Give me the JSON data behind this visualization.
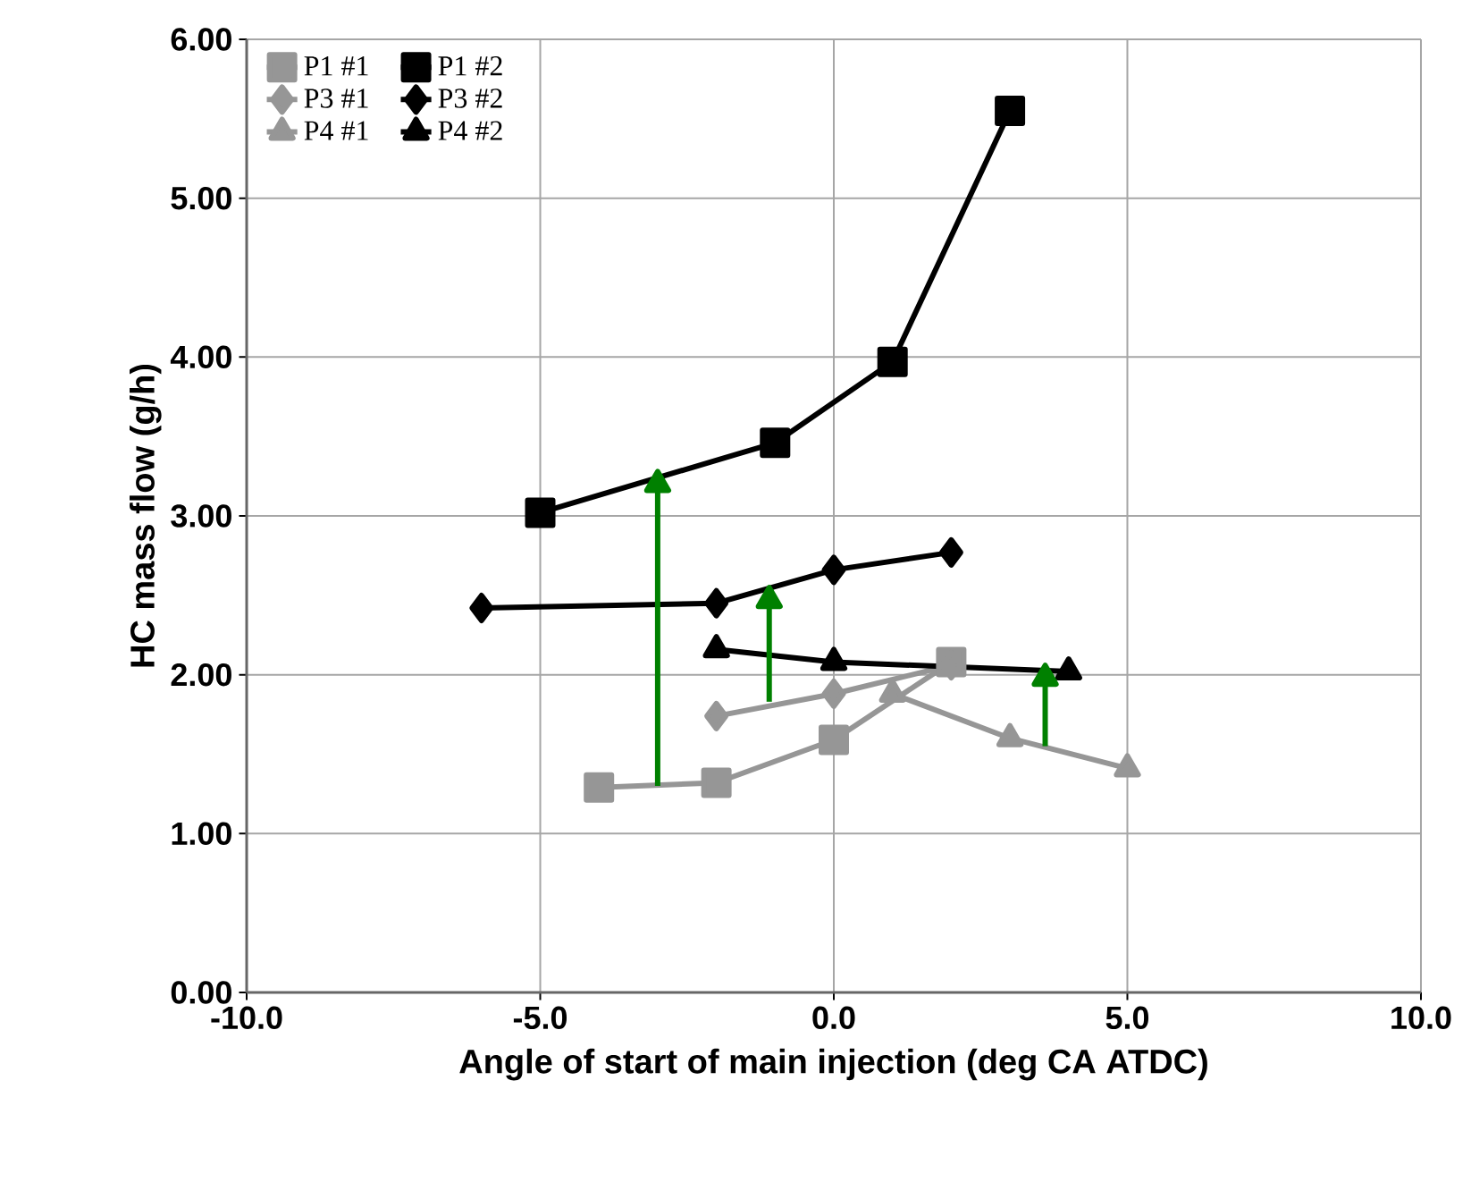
{
  "chart_data": {
    "type": "line",
    "xlabel": "Angle of start of main injection (deg CA ATDC)",
    "ylabel": "HC mass flow (g/h)",
    "xlim": [
      -10,
      10
    ],
    "xticks": [
      {
        "value": -10,
        "label": "-10.0"
      },
      {
        "value": -5,
        "label": "-5.0"
      },
      {
        "value": 0,
        "label": "0.0"
      },
      {
        "value": 5,
        "label": "5.0"
      },
      {
        "value": 10,
        "label": "10.0"
      }
    ],
    "ylim": [
      0,
      6
    ],
    "yticks": [
      {
        "value": 0,
        "label": "0.00"
      },
      {
        "value": 1,
        "label": "1.00"
      },
      {
        "value": 2,
        "label": "2.00"
      },
      {
        "value": 3,
        "label": "3.00"
      },
      {
        "value": 4,
        "label": "4.00"
      },
      {
        "value": 5,
        "label": "5.00"
      },
      {
        "value": 6,
        "label": "6.00"
      }
    ],
    "grid": true,
    "legend": "top left",
    "series": [
      {
        "name": "P1 #1",
        "color": "#969696",
        "marker": "square",
        "x": [
          -4,
          -2,
          0,
          2
        ],
        "values": [
          1.29,
          1.32,
          1.59,
          2.08
        ]
      },
      {
        "name": "P1 #2",
        "color": "#000000",
        "marker": "square",
        "x": [
          -5,
          -1,
          1,
          3
        ],
        "values": [
          3.02,
          3.46,
          3.97,
          5.55
        ]
      },
      {
        "name": "P3 #1",
        "color": "#969696",
        "marker": "diamond",
        "x": [
          -2,
          0,
          2
        ],
        "values": [
          1.74,
          1.88,
          2.06
        ]
      },
      {
        "name": "P3 #2",
        "color": "#000000",
        "marker": "diamond",
        "x": [
          -6,
          -2,
          0,
          2
        ],
        "values": [
          2.42,
          2.45,
          2.66,
          2.77
        ]
      },
      {
        "name": "P4 #1",
        "color": "#969696",
        "marker": "triangle",
        "x": [
          1,
          3,
          5
        ],
        "values": [
          1.88,
          1.6,
          1.41
        ]
      },
      {
        "name": "P4 #2",
        "color": "#000000",
        "marker": "triangle",
        "x": [
          -2,
          0,
          4
        ],
        "values": [
          2.16,
          2.08,
          2.02
        ]
      },
      {
        "color": "#008000",
        "marker": "triangle",
        "x": [
          -3,
          -3
        ],
        "values": [
          1.3,
          3.2
        ]
      },
      {
        "color": "#008000",
        "marker": "triangle",
        "x": [
          -1.1,
          -1.1
        ],
        "values": [
          1.83,
          2.47
        ]
      },
      {
        "color": "#008000",
        "marker": "triangle",
        "x": [
          3.6,
          3.6
        ],
        "values": [
          1.55,
          1.98
        ]
      }
    ]
  }
}
